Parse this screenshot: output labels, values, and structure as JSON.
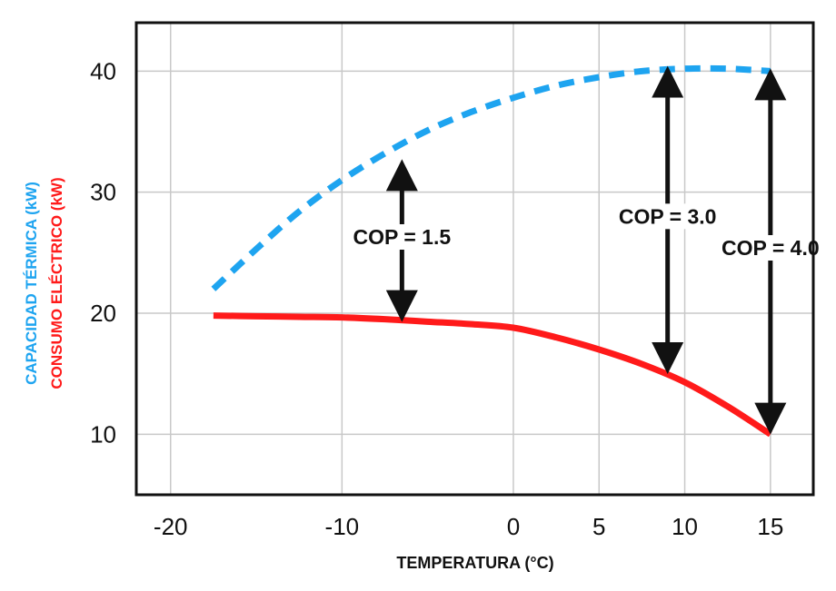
{
  "chart_data": {
    "type": "line",
    "xlabel": "TEMPERATURA (°C)",
    "ylabel_capacity": "CAPACIDAD TÉRMICA (kW)",
    "ylabel_consumption": "CONSUMO ELÉCTRICO (kW)",
    "xlim": [
      -22,
      17.5
    ],
    "ylim": [
      5,
      44
    ],
    "x_ticks": [
      -20,
      -10,
      0,
      5,
      10,
      15
    ],
    "x_tick_labels": [
      "-20",
      "-10",
      "0",
      "5",
      "10",
      "15"
    ],
    "y_ticks": [
      10,
      20,
      30,
      40
    ],
    "y_tick_labels": [
      "10",
      "20",
      "30",
      "40"
    ],
    "grid": true,
    "series": [
      {
        "key": "capacity",
        "style": "dashed",
        "color": "#1ea4f0",
        "x": [
          -17.5,
          -15,
          -12.5,
          -10,
          -7.5,
          -5,
          -2.5,
          0,
          2.5,
          5,
          7.5,
          10,
          12.5,
          15
        ],
        "y": [
          22.0,
          25.3,
          28.4,
          31.0,
          33.2,
          35.1,
          36.6,
          37.8,
          38.8,
          39.5,
          40.0,
          40.2,
          40.2,
          40.0
        ]
      },
      {
        "key": "consumption",
        "style": "solid",
        "color": "#ff1a1a",
        "x": [
          -17.5,
          -15,
          -12.5,
          -10,
          -7.5,
          -5,
          -2.5,
          0,
          2.5,
          5,
          7.5,
          10,
          12.5,
          15
        ],
        "y": [
          19.8,
          19.75,
          19.7,
          19.65,
          19.5,
          19.3,
          19.1,
          18.8,
          18.0,
          17.0,
          15.8,
          14.3,
          12.3,
          10.0
        ]
      }
    ],
    "annotations": [
      {
        "text": "COP = 1.5",
        "x": -6.5,
        "y_top": 32.5,
        "y_bottom": 19.5
      },
      {
        "text": "COP = 3.0",
        "x": 9,
        "y_top": 40.2,
        "y_bottom": 15.2
      },
      {
        "text": "COP = 4.0",
        "x": 15,
        "y_top": 40.0,
        "y_bottom": 10.2
      }
    ]
  }
}
